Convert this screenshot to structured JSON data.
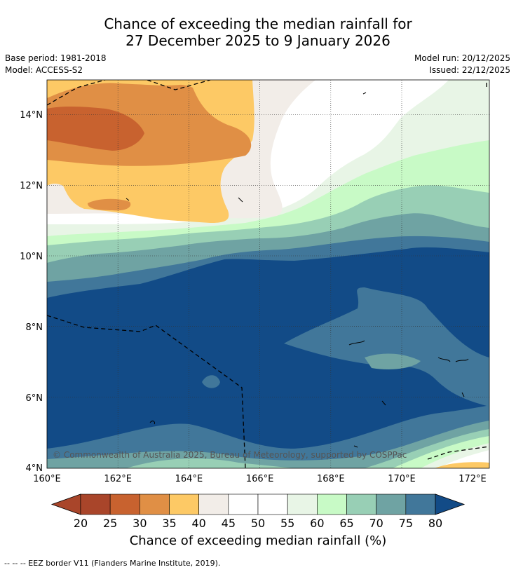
{
  "title": {
    "line1": "Chance of exceeding the median rainfall for",
    "line2": "27 December 2025 to 9 January 2026"
  },
  "meta": {
    "base_period": "Base period: 1981-2018",
    "model": "Model: ACCESS-S2",
    "model_run": "Model run: 20/12/2025",
    "issued": "Issued: 22/12/2025"
  },
  "map": {
    "lon_ticks": [
      "160°E",
      "162°E",
      "164°E",
      "166°E",
      "168°E",
      "170°E",
      "172°E"
    ],
    "lat_ticks": [
      "14°N",
      "12°N",
      "10°N",
      "8°N",
      "6°N",
      "4°N"
    ],
    "lon_range": [
      160,
      172.5
    ],
    "lat_range": [
      4,
      15
    ],
    "copyright": "© Commonwealth of Australia 2025, Bureau of Meteorology, supported by COSPPac"
  },
  "colorbar": {
    "labels": [
      "20",
      "25",
      "30",
      "35",
      "40",
      "45",
      "50",
      "55",
      "60",
      "65",
      "70",
      "75",
      "80"
    ],
    "colors": [
      "#a9452a",
      "#c8622f",
      "#e08f45",
      "#fdc965",
      "#f2ede8",
      "#ffffff",
      "#ffffff",
      "#e8f5e6",
      "#c8fac6",
      "#98cfb5",
      "#6fa3a3",
      "#41779a"
    ],
    "low_extend_color": "#a9452a",
    "high_extend_color": "#124b87",
    "title": "Chance of exceeding median rainfall (%)"
  },
  "footnote": "--  --  -- EEZ border V11 (Flanders Marine Institute, 2019)."
}
